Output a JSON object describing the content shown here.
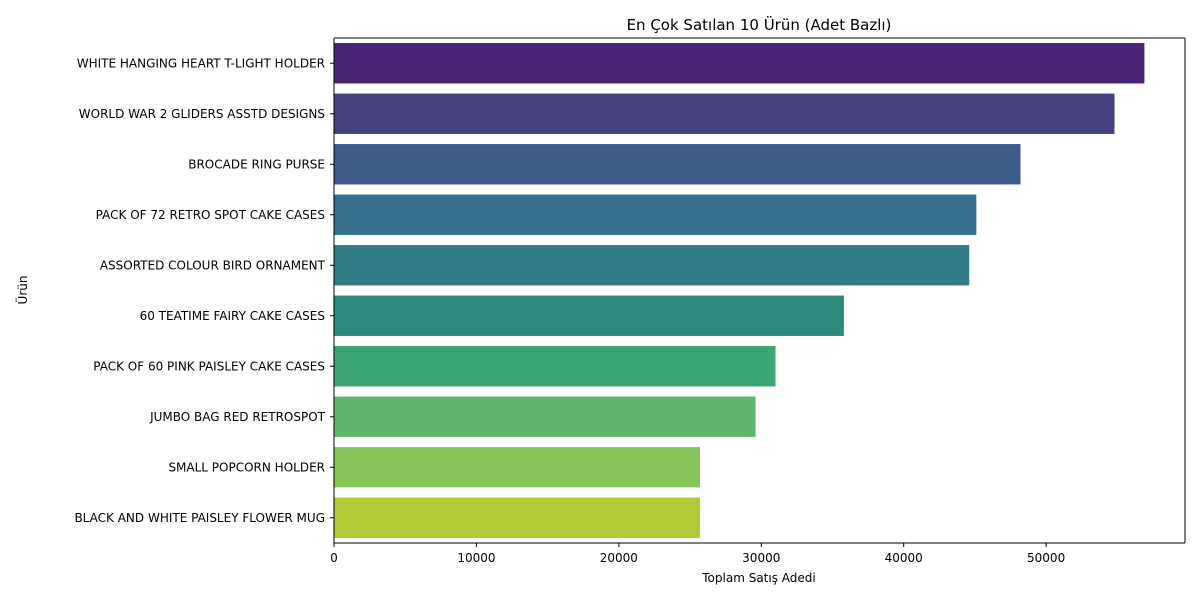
{
  "chart_data": {
    "type": "bar",
    "orientation": "horizontal",
    "title": "En Çok Satılan 10 Ürün (Adet Bazlı)",
    "xlabel": "Toplam Satış Adedi",
    "ylabel": "Ürün",
    "categories": [
      "WHITE HANGING HEART T-LIGHT HOLDER",
      "WORLD WAR 2 GLIDERS ASSTD DESIGNS",
      "BROCADE RING PURSE ",
      "PACK OF 72 RETRO SPOT CAKE CASES",
      "ASSORTED COLOUR BIRD ORNAMENT",
      "60 TEATIME FAIRY CAKE CASES",
      "PACK OF 60 PINK PAISLEY CAKE CASES",
      "JUMBO BAG RED RETROSPOT",
      "SMALL POPCORN HOLDER",
      "BLACK AND WHITE PAISLEY FLOWER MUG"
    ],
    "values": [
      56900,
      54800,
      48200,
      45100,
      44600,
      35800,
      31000,
      29600,
      25700,
      25700
    ],
    "colors": [
      "#482475",
      "#46417f",
      "#3f5b89",
      "#38718d",
      "#317c85",
      "#2d8b7c",
      "#3ba674",
      "#60b66c",
      "#87c55a",
      "#b2c938"
    ],
    "xticks": [
      0,
      10000,
      20000,
      30000,
      40000,
      50000
    ],
    "xtick_labels": [
      "0",
      "10000",
      "20000",
      "30000",
      "40000",
      "50000"
    ],
    "xlim": [
      0,
      59750
    ],
    "grid": false,
    "legend": "none"
  }
}
